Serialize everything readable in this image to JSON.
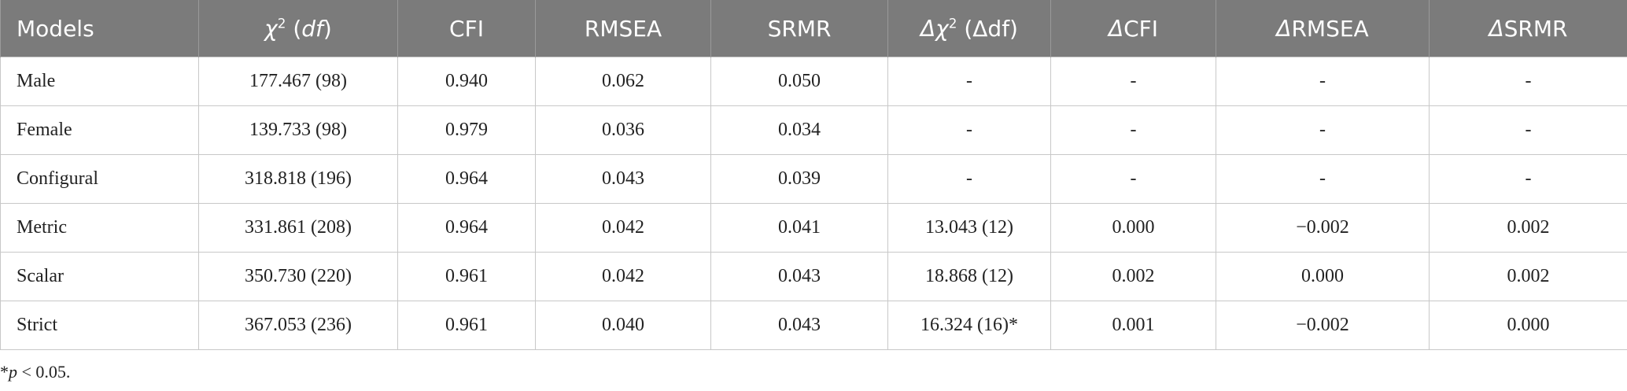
{
  "table": {
    "header": [
      [
        {
          "text": "Models"
        }
      ],
      [
        {
          "text": "χ",
          "style": "italic"
        },
        {
          "text": "2",
          "style": "sup"
        },
        {
          "text": " ("
        },
        {
          "text": "df",
          "style": "italic"
        },
        {
          "text": ")"
        }
      ],
      [
        {
          "text": "CFI"
        }
      ],
      [
        {
          "text": "RMSEA"
        }
      ],
      [
        {
          "text": "SRMR"
        }
      ],
      [
        {
          "text": "Δχ",
          "style": "italic"
        },
        {
          "text": "2",
          "style": "sup"
        },
        {
          "text": " (Δdf)"
        }
      ],
      [
        {
          "text": "Δ",
          "style": "italic"
        },
        {
          "text": "CFI"
        }
      ],
      [
        {
          "text": "Δ",
          "style": "italic"
        },
        {
          "text": "RMSEA"
        }
      ],
      [
        {
          "text": "Δ",
          "style": "italic"
        },
        {
          "text": "SRMR"
        }
      ]
    ],
    "rows": [
      [
        "Male",
        "177.467 (98)",
        "0.940",
        "0.062",
        "0.050",
        "-",
        "-",
        "-",
        "-"
      ],
      [
        "Female",
        "139.733 (98)",
        "0.979",
        "0.036",
        "0.034",
        "-",
        "-",
        "-",
        "-"
      ],
      [
        "Configural",
        "318.818 (196)",
        "0.964",
        "0.043",
        "0.039",
        "-",
        "-",
        "-",
        "-"
      ],
      [
        "Metric",
        "331.861 (208)",
        "0.964",
        "0.042",
        "0.041",
        "13.043 (12)",
        "0.000",
        "−0.002",
        "0.002"
      ],
      [
        "Scalar",
        "350.730 (220)",
        "0.961",
        "0.042",
        "0.043",
        "18.868 (12)",
        "0.002",
        "0.000",
        "0.002"
      ],
      [
        "Strict",
        "367.053 (236)",
        "0.961",
        "0.040",
        "0.043",
        "16.324 (16)*",
        "0.001",
        "−0.002",
        "0.000"
      ]
    ]
  },
  "footnote": [
    {
      "text": "*"
    },
    {
      "text": "p",
      "style": "italic"
    },
    {
      "text": " < 0.05."
    }
  ]
}
